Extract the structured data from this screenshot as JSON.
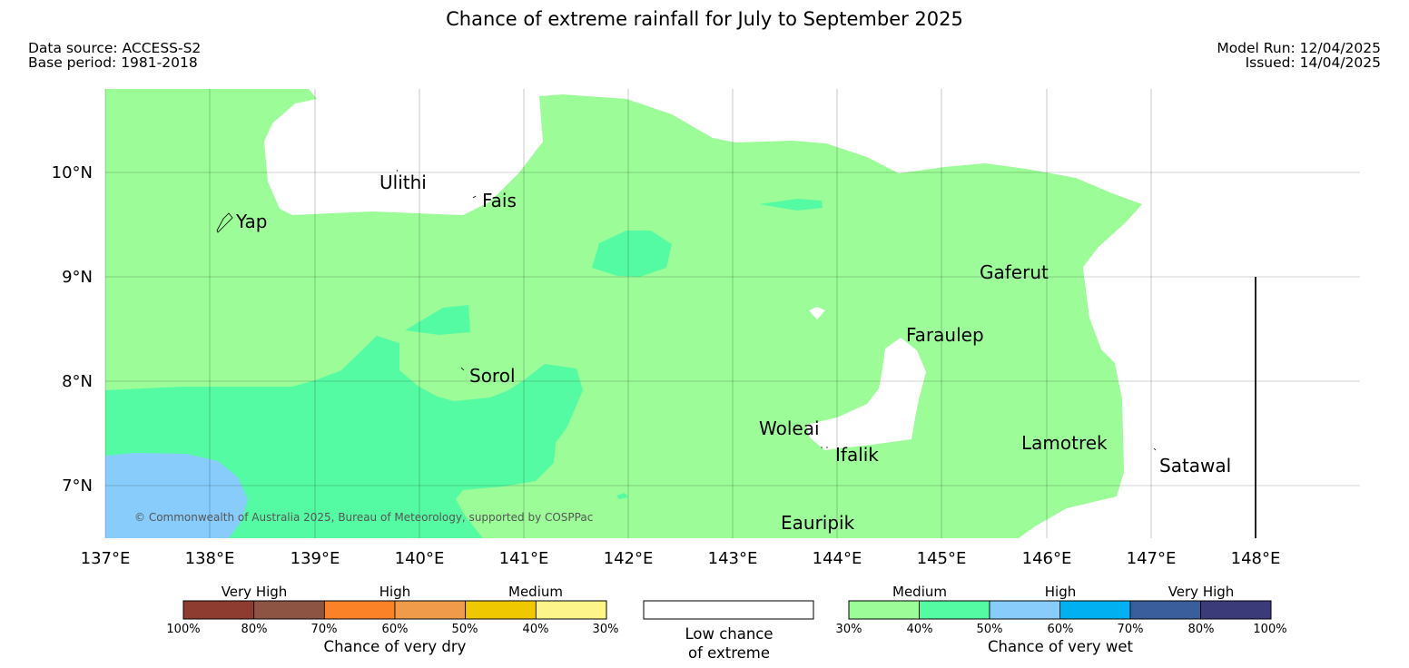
{
  "title": "Chance of extreme rainfall for July to September 2025",
  "meta": {
    "data_source": "Data source: ACCESS-S2",
    "base_period": "Base period: 1981-2018",
    "model_run": "Model Run: 12/04/2025",
    "issued": "Issued: 14/04/2025"
  },
  "map": {
    "lon_range": [
      137,
      149
    ],
    "lat_range": [
      6.5,
      10.8
    ],
    "x_ticks": [
      "137°E",
      "138°E",
      "139°E",
      "140°E",
      "141°E",
      "142°E",
      "143°E",
      "144°E",
      "145°E",
      "146°E",
      "147°E",
      "148°E"
    ],
    "y_ticks": [
      "10°N",
      "9°N",
      "8°N",
      "7°N"
    ],
    "credit": "© Commonwealth of Australia 2025, Bureau of Meteorology, supported by COSPPac",
    "places": [
      {
        "name": "Yap"
      },
      {
        "name": "Ulithi"
      },
      {
        "name": "Fais"
      },
      {
        "name": "Gaferut"
      },
      {
        "name": "Faraulep"
      },
      {
        "name": "Sorol"
      },
      {
        "name": "Woleai"
      },
      {
        "name": "Ifalik"
      },
      {
        "name": "Lamotrek"
      },
      {
        "name": "Satawal"
      },
      {
        "name": "Eauripik"
      }
    ],
    "colors": {
      "wet_30_40": "#9cfc98",
      "wet_40_50": "#55fba3",
      "wet_50_60": "#88ccfc",
      "low_chance": "#ffffff"
    }
  },
  "legend": {
    "dry": {
      "categories": [
        "Very High",
        "High",
        "Medium"
      ],
      "ticks": [
        "100%",
        "80%",
        "70%",
        "60%",
        "50%",
        "40%",
        "30%"
      ],
      "colors": [
        "#8e3b30",
        "#8e5443",
        "#fc8227",
        "#ef9b4a",
        "#f0c800",
        "#fdf48a"
      ],
      "title": "Chance of very dry"
    },
    "low": {
      "line1": "Low chance",
      "line2": "of extreme"
    },
    "wet": {
      "categories": [
        "Medium",
        "High",
        "Very High"
      ],
      "ticks": [
        "30%",
        "40%",
        "50%",
        "60%",
        "70%",
        "80%",
        "100%"
      ],
      "colors": [
        "#9cfc98",
        "#55fba3",
        "#88ccfc",
        "#00b0f0",
        "#3a5e9c",
        "#3b3b7a"
      ],
      "title": "Chance of very wet"
    }
  }
}
